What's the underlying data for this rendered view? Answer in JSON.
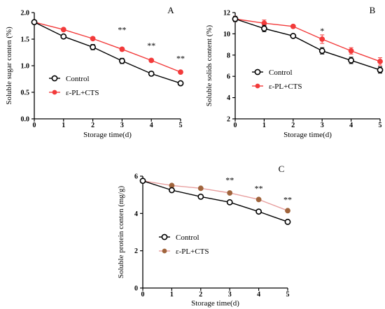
{
  "chart_data": [
    {
      "id": "A",
      "type": "line",
      "panel_label": "A",
      "xlabel": "Storage time(d)",
      "ylabel": "Soluble sugar conten (%)",
      "x": [
        0,
        1,
        2,
        3,
        4,
        5
      ],
      "xticks": [
        "0",
        "1",
        "2",
        "3",
        "4",
        "5"
      ],
      "xlim": [
        0,
        5
      ],
      "ylim": [
        0.0,
        2.0
      ],
      "yticks": [
        "0.0",
        "0.5",
        "1.0",
        "1.5",
        "2.0"
      ],
      "legend_position": "lower-left",
      "series": [
        {
          "name": "Control",
          "color": "#000000",
          "marker": "open-circle",
          "values": [
            1.82,
            1.55,
            1.35,
            1.09,
            0.85,
            0.67
          ],
          "errors": [
            0.02,
            0.03,
            0.05,
            0.05,
            0.04,
            0.03
          ]
        },
        {
          "name": "ε-PL+CTS",
          "color": "#f23a3a",
          "marker": "filled-circle",
          "values": [
            1.82,
            1.68,
            1.51,
            1.31,
            1.1,
            0.88
          ],
          "errors": [
            0.02,
            0.02,
            0.03,
            0.03,
            0.03,
            0.02
          ]
        }
      ],
      "annotations": [
        {
          "x": 3,
          "y": 1.68,
          "text": "**"
        },
        {
          "x": 4,
          "y": 1.38,
          "text": "**"
        },
        {
          "x": 5,
          "y": 1.14,
          "text": "**"
        }
      ]
    },
    {
      "id": "B",
      "type": "line",
      "panel_label": "B",
      "xlabel": "Storage time(d)",
      "ylabel": "Soluble solids content (%)",
      "x": [
        0,
        1,
        2,
        3,
        4,
        5
      ],
      "xticks": [
        "0",
        "1",
        "2",
        "3",
        "4",
        "5"
      ],
      "xlim": [
        0,
        5
      ],
      "ylim": [
        2,
        12
      ],
      "yticks": [
        "2",
        "4",
        "6",
        "8",
        "10",
        "12"
      ],
      "legend_position": "center-left",
      "series": [
        {
          "name": "Control",
          "color": "#000000",
          "marker": "open-circle",
          "values": [
            11.4,
            10.5,
            9.8,
            8.4,
            7.5,
            6.6
          ],
          "errors": [
            0.25,
            0.3,
            0.15,
            0.3,
            0.3,
            0.3
          ]
        },
        {
          "name": "ε-PL+CTS",
          "color": "#f23a3a",
          "marker": "filled-circle",
          "values": [
            11.4,
            11.0,
            10.7,
            9.5,
            8.4,
            7.4
          ],
          "errors": [
            0.25,
            0.3,
            0.15,
            0.4,
            0.3,
            0.35
          ]
        }
      ],
      "annotations": [
        {
          "x": 3,
          "y": 10.3,
          "text": "*"
        }
      ]
    },
    {
      "id": "C",
      "type": "line",
      "panel_label": "C",
      "xlabel": "Storage time(d)",
      "ylabel": "Soluble protein conten (mg/g)",
      "x": [
        0,
        1,
        2,
        3,
        4,
        5
      ],
      "xticks": [
        "0",
        "1",
        "2",
        "3",
        "4",
        "5"
      ],
      "xlim": [
        0,
        5
      ],
      "ylim": [
        0,
        6
      ],
      "yticks": [
        "0",
        "2",
        "4",
        "6"
      ],
      "legend_position": "lower-left",
      "series": [
        {
          "name": "Control",
          "color": "#000000",
          "marker": "open-circle",
          "values": [
            5.75,
            5.25,
            4.9,
            4.6,
            4.1,
            3.55
          ],
          "errors": [
            0.05,
            0.05,
            0.05,
            0.05,
            0.05,
            0.05
          ]
        },
        {
          "name": "ε-PL+CTS",
          "color": "#a0643c",
          "line_color": "#e8a0a0",
          "marker": "filled-circle",
          "values": [
            5.75,
            5.5,
            5.35,
            5.1,
            4.75,
            4.15
          ],
          "errors": [
            0.05,
            0.05,
            0.05,
            0.05,
            0.05,
            0.05
          ]
        }
      ],
      "annotations": [
        {
          "x": 3,
          "y": 5.8,
          "text": "**"
        },
        {
          "x": 4,
          "y": 5.35,
          "text": "**"
        },
        {
          "x": 5,
          "y": 4.75,
          "text": "**"
        }
      ]
    }
  ]
}
